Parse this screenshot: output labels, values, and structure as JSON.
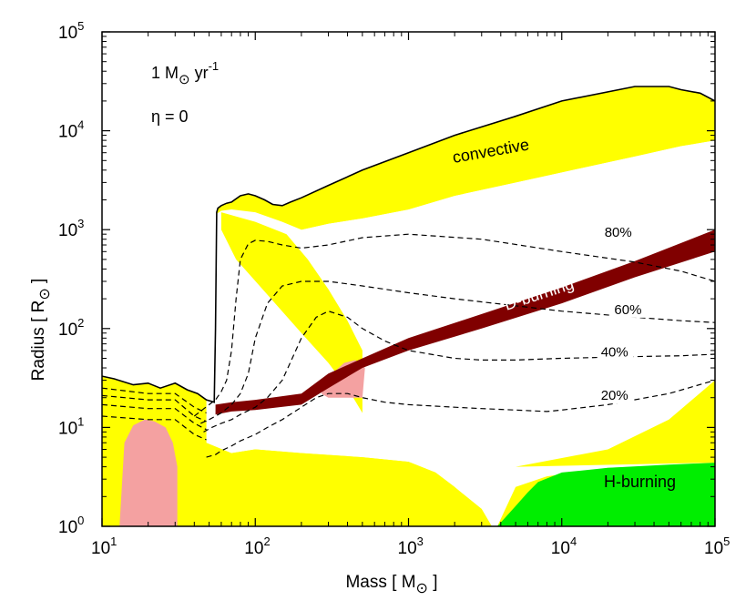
{
  "chart_data": {
    "type": "line",
    "xscale": "log",
    "yscale": "log",
    "xlim": [
      10,
      100000
    ],
    "ylim": [
      1,
      100000
    ],
    "xlabel": {
      "text": "Mass",
      "unit": "M",
      "unit_symbol": "⊙"
    },
    "ylabel": {
      "text": "Radius",
      "unit": "R",
      "unit_symbol": "⊙"
    },
    "x_ticks": [
      {
        "value": 10,
        "base": "10",
        "exp": "1"
      },
      {
        "value": 100,
        "base": "10",
        "exp": "2"
      },
      {
        "value": 1000,
        "base": "10",
        "exp": "3"
      },
      {
        "value": 10000,
        "base": "10",
        "exp": "4"
      },
      {
        "value": 100000,
        "base": "10",
        "exp": "5"
      }
    ],
    "y_ticks": [
      {
        "value": 1,
        "base": "10",
        "exp": "0"
      },
      {
        "value": 10,
        "base": "10",
        "exp": "1"
      },
      {
        "value": 100,
        "base": "10",
        "exp": "2"
      },
      {
        "value": 1000,
        "base": "10",
        "exp": "3"
      },
      {
        "value": 10000,
        "base": "10",
        "exp": "4"
      },
      {
        "value": 100000,
        "base": "10",
        "exp": "5"
      }
    ],
    "annotations": {
      "accretion_rate": {
        "prefix": "1 M",
        "sym": "⊙",
        "mid": " yr",
        "exp": "-1"
      },
      "eta": "η = 0"
    },
    "region_labels": {
      "convective": "convective",
      "d_burning": "D-burning",
      "h_burning": "H-burning"
    },
    "colors": {
      "convective": "#ffff00",
      "d_burning": "#800000",
      "h_burning": "#00ee00",
      "pink": "#f4a1a1"
    },
    "stellar_radius": {
      "name": "Total radius",
      "x": [
        10,
        12,
        16,
        20,
        24,
        30,
        36,
        42,
        48,
        54,
        55,
        56,
        57,
        60,
        65,
        70,
        80,
        90,
        100,
        115,
        130,
        150,
        170,
        200,
        300,
        500,
        1000,
        2000,
        5000,
        10000,
        30000,
        50000,
        60000,
        80000,
        100000
      ],
      "y": [
        33,
        31,
        27,
        28,
        25,
        28,
        24,
        22,
        19,
        18,
        100,
        1500,
        1650,
        1750,
        1850,
        1900,
        2200,
        2300,
        2200,
        2000,
        1800,
        1750,
        1900,
        2100,
        2800,
        4000,
        6000,
        9000,
        14000,
        20000,
        28000,
        28000,
        26000,
        24000,
        20000
      ]
    },
    "convective_upper_band": {
      "x_top": [
        200,
        300,
        500,
        1000,
        2000,
        5000,
        10000,
        30000,
        60000,
        100000
      ],
      "y_top": [
        1900,
        2600,
        3800,
        5700,
        8500,
        13000,
        18000,
        25000,
        23000,
        19000
      ],
      "x_bottom": [
        100000,
        60000,
        30000,
        10000,
        5000,
        2000,
        1000,
        500,
        300,
        200
      ],
      "y_bottom": [
        8000,
        7000,
        5500,
        3800,
        3000,
        2200,
        1600,
        1300,
        1150,
        1000
      ]
    },
    "convective_lower_band": {
      "x": [
        10,
        20,
        40,
        70,
        100,
        200,
        500,
        1000,
        1500,
        2000,
        3000,
        3500
      ],
      "y": [
        7,
        8,
        6,
        5.5,
        6,
        5.5,
        5,
        4.5,
        3.5,
        2.5,
        1.5,
        1
      ]
    },
    "d_burning_band": {
      "x": [
        55,
        70,
        100,
        200,
        300,
        500,
        1000,
        3000,
        10000,
        30000,
        100000
      ],
      "y_lower": [
        13.5,
        14.5,
        15,
        17,
        25,
        40,
        60,
        100,
        180,
        330,
        600
      ],
      "y_upper": [
        17,
        18,
        19,
        22,
        35,
        50,
        80,
        140,
        260,
        480,
        1000
      ]
    },
    "h_burning_region": {
      "x": [
        3800,
        5000,
        6000,
        7000,
        10000,
        20000,
        50000,
        100000,
        100000,
        3800
      ],
      "y": [
        1,
        1.6,
        2.2,
        2.8,
        3.5,
        3.9,
        4.2,
        4.4,
        1,
        1
      ]
    },
    "pink_regions": [
      {
        "x": [
          13,
          14,
          16,
          19,
          22,
          26,
          29,
          31,
          31,
          13
        ],
        "y": [
          1,
          7,
          10.5,
          12,
          11.5,
          10,
          7,
          4,
          1,
          1
        ]
      },
      {
        "x": [
          270,
          320,
          380,
          450,
          520,
          500,
          380,
          300,
          270
        ],
        "y": [
          22,
          35,
          45,
          48,
          40,
          20,
          20,
          20,
          22
        ]
      }
    ],
    "series": [
      {
        "name": "20%",
        "label": "20%",
        "x": [
          48,
          55,
          60,
          70,
          80,
          100,
          120,
          150,
          200,
          250,
          300,
          400,
          500,
          700,
          1000,
          2000,
          3000,
          5000,
          8000,
          10000,
          20000,
          50000,
          100000
        ],
        "y": [
          5,
          5.3,
          5.8,
          6.5,
          7.3,
          8.5,
          10,
          12,
          16,
          20,
          22,
          22,
          20,
          18,
          17,
          16,
          15.5,
          15,
          14.5,
          15,
          17,
          22,
          30
        ]
      },
      {
        "name": "40%",
        "label": "40%",
        "x": [
          46,
          52,
          60,
          70,
          80,
          100,
          120,
          150,
          200,
          250,
          300,
          400,
          500,
          700,
          1000,
          2000,
          3000,
          5000,
          10000,
          30000,
          60000,
          100000
        ],
        "y": [
          9,
          10,
          11,
          12,
          13.5,
          16,
          20,
          30,
          80,
          130,
          150,
          130,
          100,
          75,
          60,
          50,
          48,
          48,
          50,
          52,
          53,
          55
        ]
      },
      {
        "name": "60%",
        "label": "60%",
        "x": [
          44,
          50,
          60,
          70,
          80,
          90,
          100,
          120,
          150,
          200,
          300,
          500,
          1000,
          2000,
          5000,
          10000,
          30000,
          60000,
          100000
        ],
        "y": [
          11,
          12,
          14,
          17,
          22,
          35,
          80,
          180,
          270,
          300,
          300,
          270,
          230,
          200,
          170,
          150,
          130,
          120,
          115
        ]
      },
      {
        "name": "80%",
        "label": "80%",
        "x": [
          40,
          45,
          50,
          55,
          60,
          65,
          70,
          75,
          80,
          90,
          100,
          120,
          150,
          200,
          300,
          500,
          1000,
          3000,
          10000,
          30000,
          60000,
          100000
        ],
        "y": [
          13,
          15,
          17,
          19,
          23,
          30,
          60,
          200,
          500,
          720,
          780,
          760,
          700,
          650,
          700,
          830,
          900,
          800,
          600,
          470,
          380,
          300
        ]
      },
      {
        "name": "pre-break-1",
        "label": "",
        "x": [
          10,
          20,
          30,
          40,
          48
        ],
        "y": [
          25,
          22,
          22,
          16,
          14
        ]
      },
      {
        "name": "pre-break-2",
        "label": "",
        "x": [
          10,
          20,
          30,
          40,
          48
        ],
        "y": [
          21,
          19,
          19,
          13,
          11.5
        ]
      },
      {
        "name": "pre-break-3",
        "label": "",
        "x": [
          10,
          20,
          30,
          40,
          48
        ],
        "y": [
          17,
          15.5,
          15.5,
          11,
          9.5
        ]
      },
      {
        "name": "pre-break-4",
        "label": "",
        "x": [
          10,
          20,
          30,
          40,
          48
        ],
        "y": [
          13,
          12,
          12,
          8.5,
          7.5
        ]
      }
    ]
  }
}
